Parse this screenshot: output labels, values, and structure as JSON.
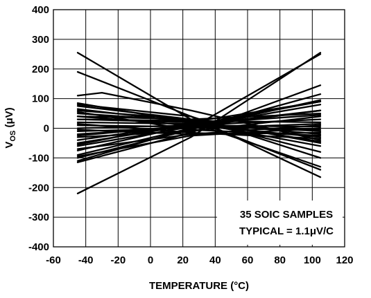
{
  "chart_data": {
    "type": "line",
    "title": "",
    "xlabel": "TEMPERATURE (°C)",
    "ylabel": {
      "main": "V",
      "sub": "OS",
      "unit": " (μV)"
    },
    "xlim": [
      -60,
      120
    ],
    "ylim": [
      -400,
      400
    ],
    "x_ticks": [
      "-60",
      "-40",
      "-20",
      "0",
      "20",
      "40",
      "60",
      "80",
      "100",
      "120"
    ],
    "y_ticks": [
      "400",
      "300",
      "200",
      "100",
      "0",
      "-100",
      "-200",
      "-300",
      "-400"
    ],
    "grid": true,
    "line_color": "#000000",
    "annotation": [
      "35 SOIC SAMPLES",
      "TYPICAL = 1.1μV/C"
    ],
    "series": [
      {
        "x": [
          -45,
          25,
          105
        ],
        "y": [
          -220,
          -30,
          255
        ]
      },
      {
        "x": [
          -45,
          25,
          105
        ],
        "y": [
          255,
          30,
          -140
        ]
      },
      {
        "x": [
          -45,
          25,
          105
        ],
        "y": [
          190,
          40,
          -165
        ]
      },
      {
        "x": [
          -45,
          -30,
          25,
          105
        ],
        "y": [
          110,
          120,
          60,
          -40
        ]
      },
      {
        "x": [
          -45,
          25,
          105
        ],
        "y": [
          -110,
          0,
          250
        ]
      },
      {
        "x": [
          -45,
          25,
          105
        ],
        "y": [
          -115,
          -15,
          145
        ]
      },
      {
        "x": [
          -45,
          25,
          105
        ],
        "y": [
          -100,
          -5,
          115
        ]
      },
      {
        "x": [
          -45,
          25,
          105
        ],
        "y": [
          -90,
          0,
          95
        ]
      },
      {
        "x": [
          -45,
          25,
          105
        ],
        "y": [
          -75,
          10,
          90
        ]
      },
      {
        "x": [
          -45,
          25,
          105
        ],
        "y": [
          -60,
          5,
          80
        ]
      },
      {
        "x": [
          -45,
          25,
          105
        ],
        "y": [
          -50,
          10,
          60
        ]
      },
      {
        "x": [
          -45,
          25,
          105
        ],
        "y": [
          -40,
          15,
          45
        ]
      },
      {
        "x": [
          -45,
          25,
          105
        ],
        "y": [
          -25,
          10,
          30
        ]
      },
      {
        "x": [
          -45,
          25,
          105
        ],
        "y": [
          -10,
          0,
          15
        ]
      },
      {
        "x": [
          -45,
          25,
          105
        ],
        "y": [
          0,
          10,
          5
        ]
      },
      {
        "x": [
          -45,
          25,
          105
        ],
        "y": [
          10,
          5,
          -5
        ]
      },
      {
        "x": [
          -45,
          25,
          105
        ],
        "y": [
          20,
          15,
          -10
        ]
      },
      {
        "x": [
          -45,
          25,
          105
        ],
        "y": [
          30,
          20,
          -20
        ]
      },
      {
        "x": [
          -45,
          25,
          105
        ],
        "y": [
          40,
          10,
          -30
        ]
      },
      {
        "x": [
          -45,
          25,
          105
        ],
        "y": [
          50,
          25,
          -45
        ]
      },
      {
        "x": [
          -45,
          25,
          105
        ],
        "y": [
          60,
          30,
          -50
        ]
      },
      {
        "x": [
          -45,
          25,
          105
        ],
        "y": [
          65,
          20,
          -60
        ]
      },
      {
        "x": [
          -45,
          25,
          105
        ],
        "y": [
          75,
          30,
          -80
        ]
      },
      {
        "x": [
          -45,
          25,
          105
        ],
        "y": [
          80,
          40,
          -100
        ]
      },
      {
        "x": [
          -45,
          25,
          105
        ],
        "y": [
          85,
          20,
          -130
        ]
      },
      {
        "x": [
          -45,
          25,
          105
        ],
        "y": [
          40,
          30,
          50
        ]
      },
      {
        "x": [
          -45,
          25,
          105
        ],
        "y": [
          30,
          25,
          20
        ]
      },
      {
        "x": [
          -45,
          25,
          105
        ],
        "y": [
          -20,
          5,
          60
        ]
      },
      {
        "x": [
          -45,
          25,
          105
        ],
        "y": [
          -30,
          -10,
          40
        ]
      },
      {
        "x": [
          -45,
          25,
          105
        ],
        "y": [
          -70,
          -20,
          10
        ]
      },
      {
        "x": [
          -45,
          25,
          105
        ],
        "y": [
          -95,
          -25,
          0
        ]
      },
      {
        "x": [
          -45,
          25,
          105
        ],
        "y": [
          15,
          -15,
          -35
        ]
      },
      {
        "x": [
          -45,
          25,
          105
        ],
        "y": [
          -5,
          -20,
          -15
        ]
      },
      {
        "x": [
          -45,
          25,
          105
        ],
        "y": [
          55,
          -5,
          -25
        ]
      },
      {
        "x": [
          -45,
          25,
          105
        ],
        "y": [
          -55,
          20,
          90
        ]
      }
    ]
  }
}
